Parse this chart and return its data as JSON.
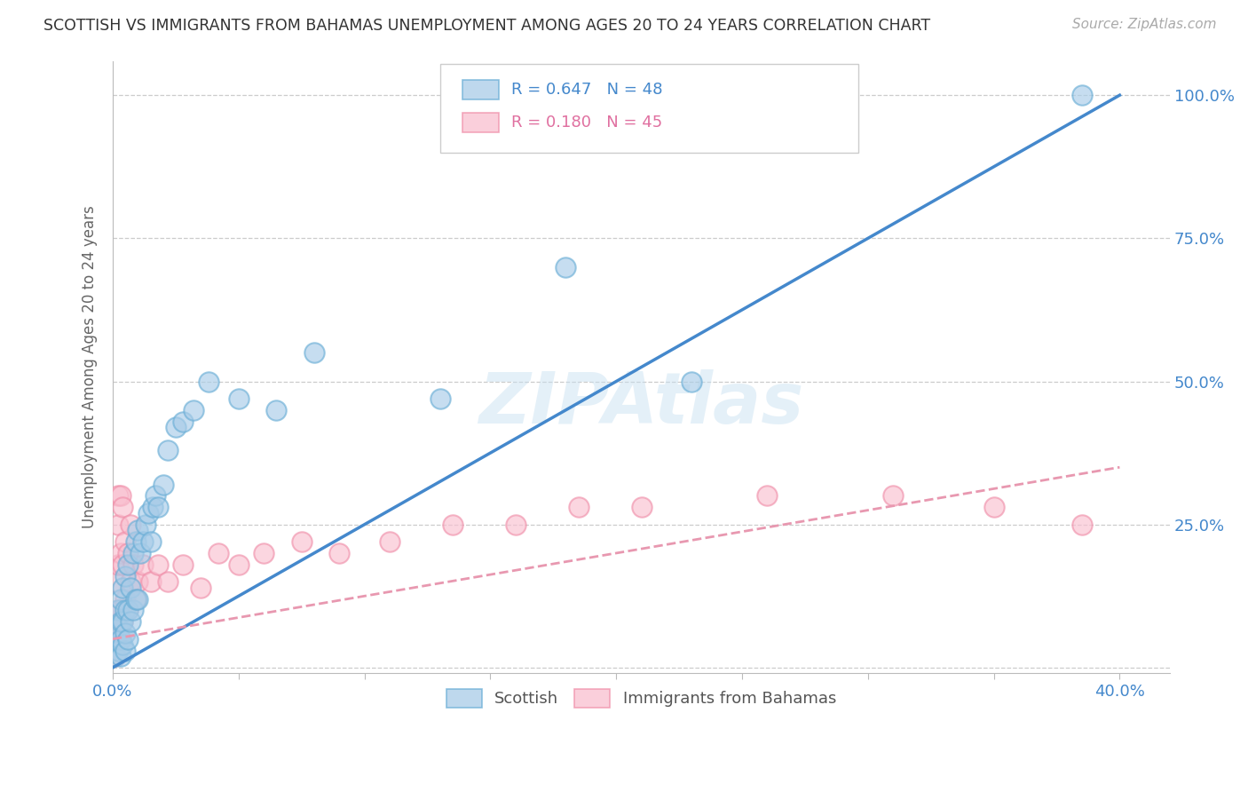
{
  "title": "SCOTTISH VS IMMIGRANTS FROM BAHAMAS UNEMPLOYMENT AMONG AGES 20 TO 24 YEARS CORRELATION CHART",
  "source": "Source: ZipAtlas.com",
  "ylabel": "Unemployment Among Ages 20 to 24 years",
  "xlim": [
    0.0,
    0.42
  ],
  "ylim": [
    -0.01,
    1.06
  ],
  "xticks": [
    0.0,
    0.05,
    0.1,
    0.15,
    0.2,
    0.25,
    0.3,
    0.35,
    0.4
  ],
  "xticklabels": [
    "0.0%",
    "",
    "",
    "",
    "",
    "",
    "",
    "",
    "40.0%"
  ],
  "yticks": [
    0.0,
    0.25,
    0.5,
    0.75,
    1.0
  ],
  "yticklabels": [
    "",
    "25.0%",
    "50.0%",
    "75.0%",
    "100.0%"
  ],
  "scottish_R": 0.647,
  "scottish_N": 48,
  "bahamas_R": 0.18,
  "bahamas_N": 45,
  "scottish_color": "#a8cce8",
  "scottish_edge": "#6aaed6",
  "bahamas_color": "#f9c0d0",
  "bahamas_edge": "#f090aa",
  "line_blue": "#4488cc",
  "line_pink": "#e898b0",
  "watermark": "ZIPAtlas",
  "background_color": "#ffffff",
  "scottish_x": [
    0.001,
    0.001,
    0.002,
    0.002,
    0.002,
    0.003,
    0.003,
    0.003,
    0.003,
    0.004,
    0.004,
    0.004,
    0.005,
    0.005,
    0.005,
    0.005,
    0.006,
    0.006,
    0.006,
    0.007,
    0.007,
    0.008,
    0.008,
    0.009,
    0.009,
    0.01,
    0.01,
    0.011,
    0.012,
    0.013,
    0.014,
    0.015,
    0.016,
    0.017,
    0.018,
    0.02,
    0.022,
    0.025,
    0.028,
    0.032,
    0.038,
    0.05,
    0.065,
    0.08,
    0.13,
    0.18,
    0.23,
    0.385
  ],
  "scottish_y": [
    0.02,
    0.05,
    0.03,
    0.07,
    0.1,
    0.02,
    0.05,
    0.08,
    0.12,
    0.04,
    0.08,
    0.14,
    0.03,
    0.06,
    0.1,
    0.16,
    0.05,
    0.1,
    0.18,
    0.08,
    0.14,
    0.1,
    0.2,
    0.12,
    0.22,
    0.12,
    0.24,
    0.2,
    0.22,
    0.25,
    0.27,
    0.22,
    0.28,
    0.3,
    0.28,
    0.32,
    0.38,
    0.42,
    0.43,
    0.45,
    0.5,
    0.47,
    0.45,
    0.55,
    0.47,
    0.7,
    0.5,
    1.0
  ],
  "bahamas_x": [
    0.001,
    0.001,
    0.001,
    0.001,
    0.002,
    0.002,
    0.002,
    0.002,
    0.002,
    0.003,
    0.003,
    0.003,
    0.003,
    0.004,
    0.004,
    0.004,
    0.005,
    0.005,
    0.006,
    0.006,
    0.007,
    0.007,
    0.008,
    0.009,
    0.01,
    0.012,
    0.015,
    0.018,
    0.022,
    0.028,
    0.035,
    0.042,
    0.05,
    0.06,
    0.075,
    0.09,
    0.11,
    0.135,
    0.16,
    0.185,
    0.21,
    0.26,
    0.31,
    0.35,
    0.385
  ],
  "bahamas_y": [
    0.02,
    0.05,
    0.08,
    0.15,
    0.05,
    0.1,
    0.18,
    0.25,
    0.3,
    0.05,
    0.1,
    0.2,
    0.3,
    0.08,
    0.18,
    0.28,
    0.12,
    0.22,
    0.1,
    0.2,
    0.15,
    0.25,
    0.18,
    0.12,
    0.15,
    0.18,
    0.15,
    0.18,
    0.15,
    0.18,
    0.14,
    0.2,
    0.18,
    0.2,
    0.22,
    0.2,
    0.22,
    0.25,
    0.25,
    0.28,
    0.28,
    0.3,
    0.3,
    0.28,
    0.25
  ],
  "scottish_line_x": [
    0.0,
    0.4
  ],
  "scottish_line_y": [
    0.0,
    1.0
  ],
  "bahamas_line_x": [
    0.0,
    0.4
  ],
  "bahamas_line_y": [
    0.05,
    0.35
  ]
}
